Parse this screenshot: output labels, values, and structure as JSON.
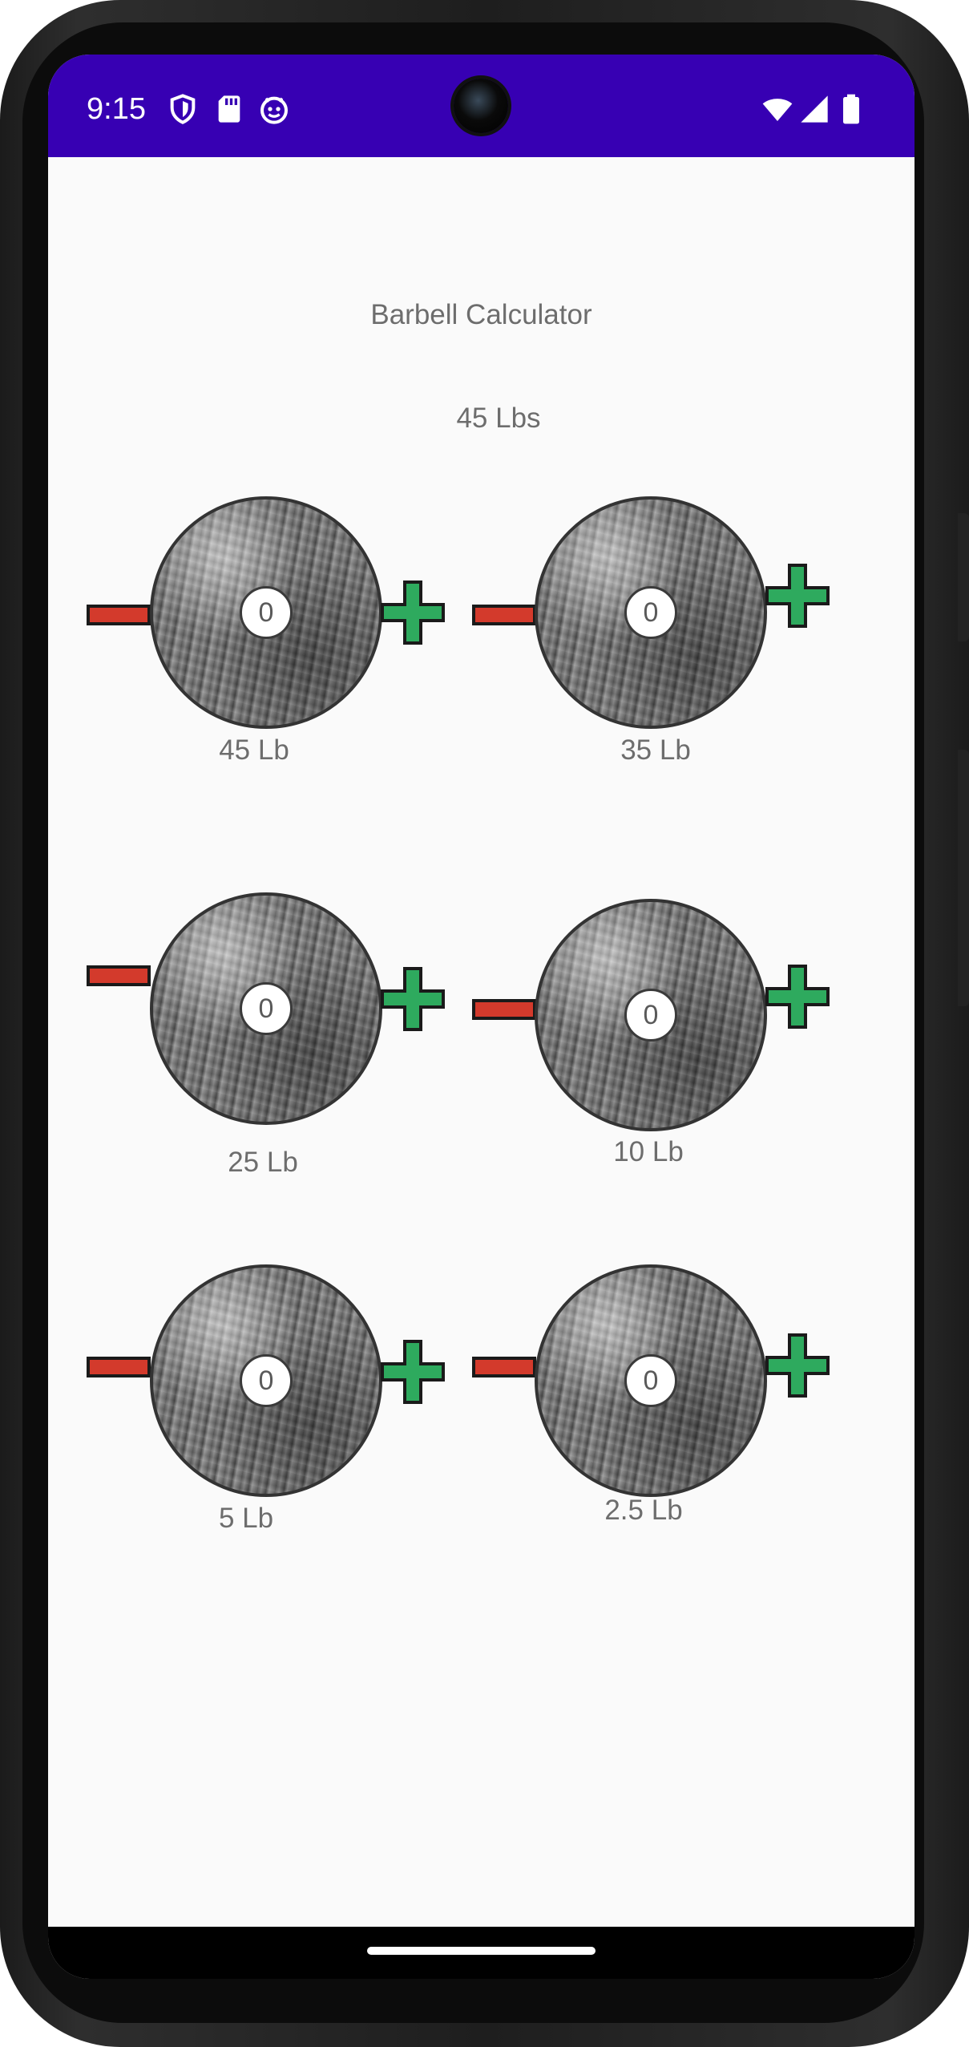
{
  "status_bar": {
    "time": "9:15",
    "left_icons": [
      "shield-icon",
      "sd-card-icon",
      "android-debug-icon"
    ],
    "right_icons": [
      "wifi-icon",
      "cellular-signal-icon",
      "battery-icon"
    ],
    "color": "#3700b3"
  },
  "app": {
    "title": "Barbell Calculator",
    "total": "45 Lbs"
  },
  "plates": [
    {
      "label": "45 Lb",
      "count": "0"
    },
    {
      "label": "35 Lb",
      "count": "0"
    },
    {
      "label": "25 Lb",
      "count": "0"
    },
    {
      "label": "10 Lb",
      "count": "0"
    },
    {
      "label": "5 Lb",
      "count": "0"
    },
    {
      "label": "2.5 Lb",
      "count": "0"
    }
  ],
  "colors": {
    "minus": "#d33a2c",
    "plus": "#2eaa5e",
    "text": "#6d6d6d",
    "background": "#fafafa"
  }
}
